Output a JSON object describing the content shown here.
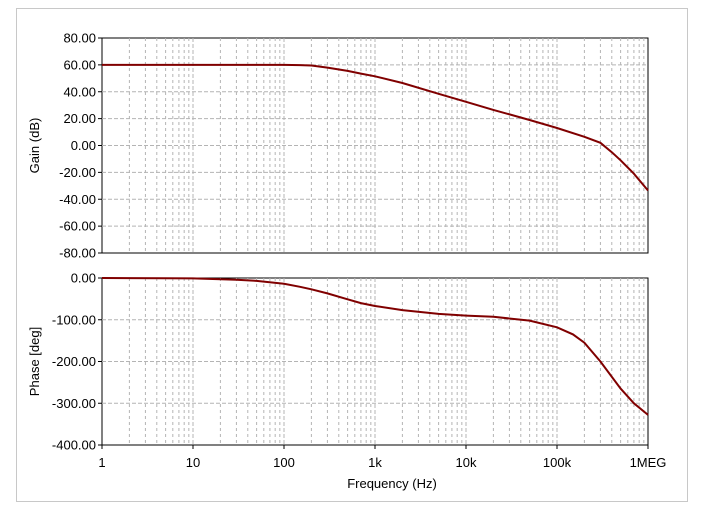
{
  "chart_data": [
    {
      "type": "line",
      "ylabel": "Gain (dB)",
      "xlabel": "",
      "xscale": "log",
      "xlim": [
        1,
        1000000
      ],
      "ylim": [
        -80,
        80
      ],
      "yticks": [
        80,
        60,
        40,
        20,
        0,
        -20,
        -40,
        -60,
        -80
      ],
      "ytick_labels": [
        "80.00",
        "60.00",
        "40.00",
        "20.00",
        "0.00",
        "-20.00",
        "-40.00",
        "-60.00",
        "-80.00"
      ],
      "grid": true,
      "line_color": "#800000",
      "series": [
        {
          "x": [
            1,
            10,
            100,
            150,
            200,
            300,
            500,
            700,
            1000,
            2000,
            5000,
            10000,
            20000,
            50000,
            100000,
            200000,
            300000,
            400000,
            500000,
            700000,
            1000000
          ],
          "values": [
            60,
            60,
            60,
            59.8,
            59.5,
            58,
            55.5,
            53.5,
            51.5,
            46.5,
            38.5,
            32.5,
            26.5,
            19,
            13,
            6.5,
            2,
            -5,
            -11,
            -21,
            -33.5
          ]
        }
      ]
    },
    {
      "type": "line",
      "xlabel": "Frequency (Hz)",
      "ylabel": "Phase [deg]",
      "xscale": "log",
      "xlim": [
        1,
        1000000
      ],
      "ylim": [
        -400,
        0
      ],
      "yticks": [
        0,
        -100,
        -200,
        -300,
        -400
      ],
      "ytick_labels": [
        "0.00",
        "-100.00",
        "-200.00",
        "-300.00",
        "-400.00"
      ],
      "xticks": [
        1,
        10,
        100,
        1000,
        10000,
        100000,
        1000000
      ],
      "xtick_labels": [
        "1",
        "10",
        "100",
        "1k",
        "10k",
        "100k",
        "1MEG"
      ],
      "grid": true,
      "line_color": "#800000",
      "series": [
        {
          "x": [
            1,
            5,
            10,
            30,
            50,
            100,
            150,
            200,
            300,
            500,
            700,
            1000,
            2000,
            5000,
            10000,
            20000,
            50000,
            100000,
            150000,
            200000,
            300000,
            500000,
            700000,
            1000000
          ],
          "values": [
            0,
            -0.5,
            -1,
            -4,
            -7,
            -14,
            -21,
            -27,
            -37,
            -51,
            -60,
            -67,
            -77,
            -86,
            -90,
            -93,
            -102,
            -118,
            -135,
            -155,
            -200,
            -265,
            -300,
            -328
          ]
        }
      ]
    }
  ]
}
